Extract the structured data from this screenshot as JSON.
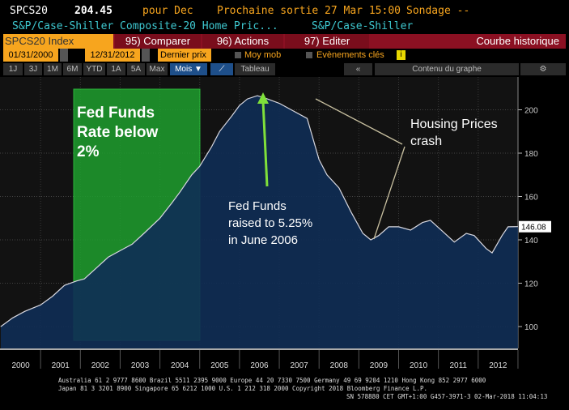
{
  "header": {
    "ticker": "SPCS20",
    "price": "204.45",
    "period": "pour Dec",
    "next_release": "Prochaine sortie 27 Mar 15:00",
    "survey": "Sondage --",
    "name": "S&P/Case-Shiller Composite-20 Home Pric...",
    "source": "S&P/Case-Shiller"
  },
  "toolbar": {
    "security": "SPCS20 Index",
    "compare": "95) Comparer",
    "actions": "96) Actions",
    "edit": "97) Editer",
    "mode": "Courbe historique"
  },
  "controls": {
    "start_date": "01/31/2000",
    "end_date": "12/31/2012",
    "field": "Dernier prix",
    "moving_avg": "Moy mob",
    "key_events": "Evènements clés",
    "info": "i"
  },
  "periods": [
    "1J",
    "3J",
    "1M",
    "6M",
    "YTD",
    "1A",
    "5A",
    "Max"
  ],
  "frequency": "Mois ▼",
  "table": "Tableau",
  "collapse": "«",
  "chart_content": "Contenu du graphe",
  "settings_icon": "gear-icon",
  "colors": {
    "accent": "#f7a51e",
    "bar": "#8b1022",
    "fill": "#0f2d55",
    "highlight": "#1e9e2e",
    "arrow": "#7fe03a"
  },
  "chart_data": {
    "type": "area",
    "x_ticks": [
      "2000",
      "2001",
      "2002",
      "2003",
      "2004",
      "2005",
      "2006",
      "2007",
      "2008",
      "2009",
      "2010",
      "2011",
      "2012"
    ],
    "y_ticks": [
      100,
      120,
      140,
      160,
      180,
      200
    ],
    "ylim": [
      90,
      212
    ],
    "xlim": [
      2000,
      2013
    ],
    "last_value_label": "146.08",
    "points": [
      [
        2000.0,
        100
      ],
      [
        2000.3,
        104
      ],
      [
        2000.6,
        107
      ],
      [
        2001.0,
        110
      ],
      [
        2001.3,
        114
      ],
      [
        2001.6,
        119
      ],
      [
        2001.9,
        121
      ],
      [
        2002.1,
        122
      ],
      [
        2002.4,
        127
      ],
      [
        2002.7,
        132
      ],
      [
        2003.0,
        135
      ],
      [
        2003.3,
        138
      ],
      [
        2003.6,
        143
      ],
      [
        2004.0,
        150
      ],
      [
        2004.3,
        157
      ],
      [
        2004.5,
        162
      ],
      [
        2004.8,
        170
      ],
      [
        2005.0,
        174
      ],
      [
        2005.3,
        183
      ],
      [
        2005.5,
        190
      ],
      [
        2005.8,
        197
      ],
      [
        2006.0,
        202
      ],
      [
        2006.2,
        205
      ],
      [
        2006.45,
        206.5
      ],
      [
        2006.7,
        205
      ],
      [
        2007.0,
        203
      ],
      [
        2007.3,
        200
      ],
      [
        2007.7,
        196
      ],
      [
        2008.0,
        177
      ],
      [
        2008.2,
        170
      ],
      [
        2008.5,
        164
      ],
      [
        2008.8,
        153
      ],
      [
        2009.1,
        143
      ],
      [
        2009.3,
        140
      ],
      [
        2009.5,
        142
      ],
      [
        2009.75,
        146
      ],
      [
        2010.0,
        146
      ],
      [
        2010.3,
        144.5
      ],
      [
        2010.6,
        148
      ],
      [
        2010.8,
        149
      ],
      [
        2011.1,
        144
      ],
      [
        2011.4,
        139
      ],
      [
        2011.7,
        143
      ],
      [
        2011.9,
        142
      ],
      [
        2012.2,
        136
      ],
      [
        2012.35,
        134
      ],
      [
        2012.6,
        142
      ],
      [
        2012.75,
        146
      ],
      [
        2013.0,
        146.08
      ]
    ],
    "annotations": {
      "fed_low": "Fed Funds Rate below 2%",
      "fed_raise": "Fed Funds raised to 5.25% in June 2006",
      "crash": "Housing Prices crash"
    }
  },
  "footer": {
    "line1": "Australia 61 2 9777 8600 Brazil 5511 2395 9000 Europe 44 20 7330 7500 Germany 49 69 9204 1210 Hong Kong 852 2977 6000",
    "line2": "Japan 81 3 3201 8900      Singapore 65 6212 1000      U.S. 1 212 318 2000       Copyright 2018 Bloomberg Finance L.P.",
    "line3": "SN 578880 CET  GMT+1:00 G457-3971-3 02-Mar-2018 11:04:13"
  }
}
